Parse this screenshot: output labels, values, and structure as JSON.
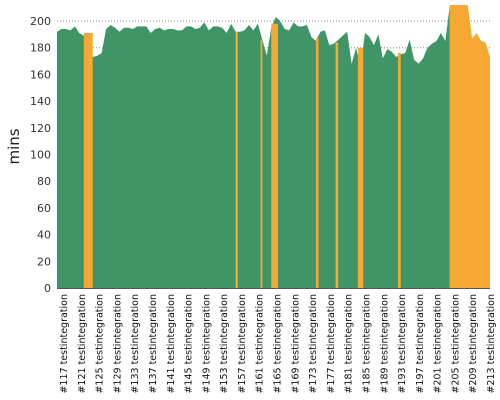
{
  "chart_data": {
    "type": "area",
    "title": "",
    "xlabel": "",
    "ylabel": "mins",
    "ylim": [
      0,
      212
    ],
    "yticks": [
      0,
      20,
      40,
      60,
      80,
      100,
      120,
      140,
      160,
      180,
      200
    ],
    "grid": "horizontal-dashed",
    "categories": [
      "#117 testintegration",
      "#121 testintegration",
      "#125 testintegration",
      "#129 testintegration",
      "#133 testintegration",
      "#137 testintegration",
      "#141 testintegration",
      "#145 testintegration",
      "#149 testintegration",
      "#153 testintegration",
      "#157 testintegration",
      "#161 testintegration",
      "#165 testintegration",
      "#169 testintegration",
      "#173 testintegration",
      "#177 testintegration",
      "#181 testintegration",
      "#185 testintegration",
      "#189 testintegration",
      "#193 testintegration",
      "#197 testintegration",
      "#201 testintegration",
      "#205 testintegration",
      "#209 testintegration",
      "#213 testintegration"
    ],
    "x_start": 117,
    "x_end": 214,
    "colors": {
      "passed": "#3f9566",
      "failed": "#f5a833"
    },
    "series": [
      {
        "status": "passed",
        "points": [
          [
            117,
            192
          ],
          [
            118,
            194
          ],
          [
            119,
            194
          ],
          [
            120,
            193
          ],
          [
            121,
            196
          ],
          [
            122,
            191
          ],
          [
            123,
            189
          ],
          [
            124,
            181
          ],
          [
            125,
            173
          ],
          [
            126,
            174
          ],
          [
            127,
            176
          ],
          [
            128,
            194
          ],
          [
            129,
            197
          ],
          [
            130,
            195
          ],
          [
            131,
            192
          ],
          [
            132,
            195
          ],
          [
            133,
            195
          ],
          [
            134,
            194
          ],
          [
            135,
            196
          ],
          [
            136,
            196
          ],
          [
            137,
            196
          ],
          [
            138,
            191
          ],
          [
            139,
            194
          ],
          [
            140,
            195
          ],
          [
            141,
            193
          ],
          [
            142,
            194
          ],
          [
            143,
            194
          ],
          [
            144,
            193
          ],
          [
            145,
            193
          ],
          [
            146,
            196
          ],
          [
            147,
            196
          ],
          [
            148,
            194
          ],
          [
            149,
            195
          ],
          [
            150,
            199
          ],
          [
            151,
            193
          ],
          [
            152,
            196
          ],
          [
            153,
            196
          ],
          [
            154,
            195
          ],
          [
            155,
            191
          ],
          [
            156,
            198
          ],
          [
            157,
            192
          ],
          [
            158,
            192
          ],
          [
            159,
            193
          ],
          [
            160,
            197
          ],
          [
            161,
            193
          ],
          [
            162,
            198
          ],
          [
            163,
            186
          ],
          [
            164,
            174
          ],
          [
            165,
            195
          ],
          [
            166,
            203
          ],
          [
            167,
            200
          ],
          [
            168,
            194
          ],
          [
            169,
            193
          ],
          [
            170,
            199
          ],
          [
            171,
            196
          ],
          [
            172,
            196
          ],
          [
            173,
            197
          ],
          [
            174,
            188
          ],
          [
            175,
            185
          ],
          [
            176,
            192
          ],
          [
            177,
            193
          ],
          [
            178,
            182
          ],
          [
            179,
            183
          ],
          [
            180,
            186
          ],
          [
            181,
            189
          ],
          [
            182,
            192
          ],
          [
            183,
            168
          ],
          [
            184,
            180
          ],
          [
            185,
            165
          ],
          [
            186,
            191
          ],
          [
            187,
            188
          ],
          [
            188,
            182
          ],
          [
            189,
            190
          ],
          [
            190,
            172
          ],
          [
            191,
            179
          ],
          [
            192,
            177
          ],
          [
            193,
            173
          ],
          [
            194,
            175
          ],
          [
            195,
            176
          ],
          [
            196,
            186
          ],
          [
            197,
            171
          ],
          [
            198,
            168
          ],
          [
            199,
            172
          ],
          [
            200,
            180
          ],
          [
            201,
            183
          ],
          [
            202,
            185
          ],
          [
            203,
            191
          ],
          [
            204,
            185
          ],
          [
            205,
            212
          ]
        ]
      },
      {
        "status": "failed",
        "builds": [
          {
            "start": 123,
            "end": 125,
            "value": 191
          },
          {
            "start": 157,
            "end": 157.5,
            "value": 192
          },
          {
            "start": 162.6,
            "end": 163,
            "value": 186
          },
          {
            "start": 165,
            "end": 166.5,
            "value": 198
          },
          {
            "start": 175,
            "end": 175.6,
            "value": 187
          },
          {
            "start": 179.4,
            "end": 180,
            "value": 184
          },
          {
            "start": 184.4,
            "end": 185.6,
            "value": 180
          },
          {
            "start": 193.4,
            "end": 194,
            "value": 176
          },
          {
            "start": 205,
            "end": 214,
            "value": 212,
            "tail": [
              [
                209,
                212
              ],
              [
                210,
                187
              ],
              [
                211,
                191
              ],
              [
                212,
                185
              ],
              [
                213,
                184
              ],
              [
                214,
                173
              ]
            ]
          }
        ]
      }
    ]
  }
}
